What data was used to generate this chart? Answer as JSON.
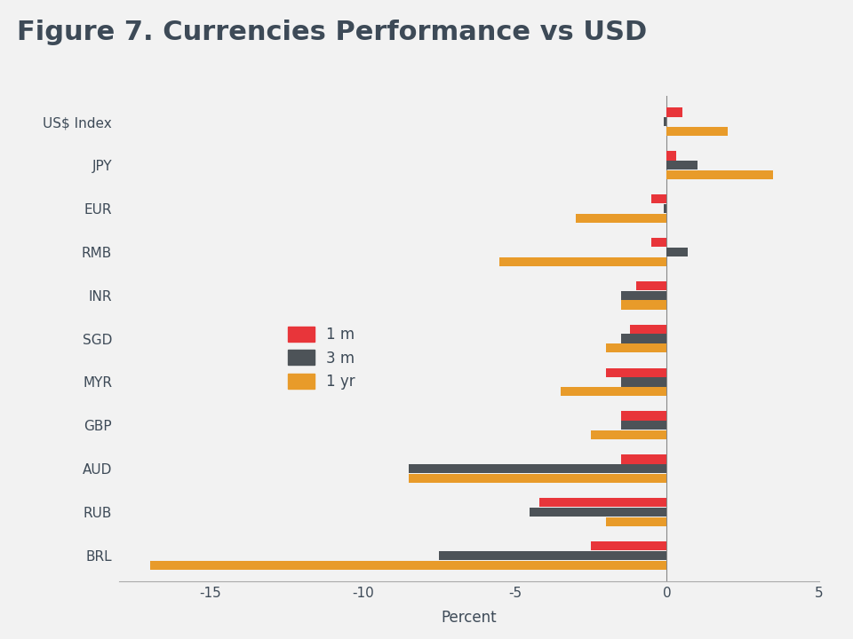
{
  "title": "Figure 7. Currencies Performance vs USD",
  "categories": [
    "US$ Index",
    "JPY",
    "EUR",
    "RMB",
    "INR",
    "SGD",
    "MYR",
    "GBP",
    "AUD",
    "RUB",
    "BRL"
  ],
  "series": {
    "1 m": [
      0.5,
      0.3,
      -0.5,
      -0.5,
      -1.0,
      -1.2,
      -2.0,
      -1.5,
      -1.5,
      -4.2,
      -2.5
    ],
    "3 m": [
      -0.1,
      1.0,
      -0.1,
      0.7,
      -1.5,
      -1.5,
      -1.5,
      -1.5,
      -8.5,
      -4.5,
      -7.5
    ],
    "1 yr": [
      2.0,
      3.5,
      -3.0,
      -5.5,
      -1.5,
      -2.0,
      -3.5,
      -2.5,
      -8.5,
      -2.0,
      -17.0
    ]
  },
  "colors": {
    "1 m": "#e8353a",
    "3 m": "#4d5358",
    "1 yr": "#e89b2a"
  },
  "xlabel": "Percent",
  "xlim": [
    -18,
    5
  ],
  "xticks": [
    -15,
    -10,
    -5,
    0,
    5
  ],
  "background_color": "#f2f2f2",
  "plot_bg_color": "#f2f2f2",
  "title_color": "#3d4a57",
  "title_fontsize": 22,
  "axis_fontsize": 11,
  "bar_height": 0.22,
  "legend_labels": [
    "1 m",
    "3 m",
    "1 yr"
  ]
}
